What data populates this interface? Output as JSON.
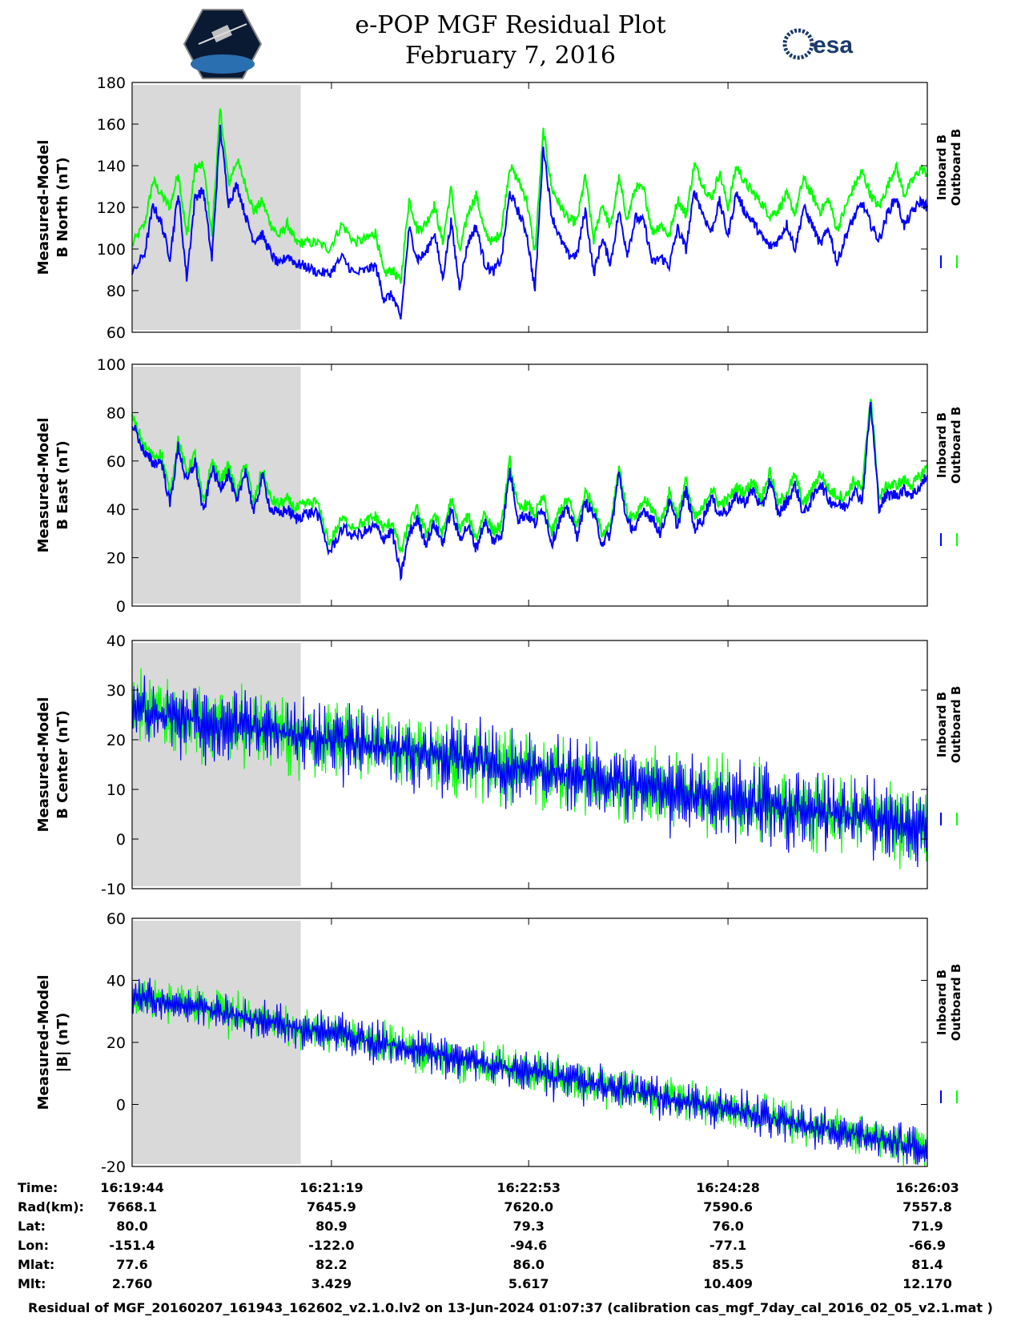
{
  "header": {
    "title": "e-POP MGF Residual Plot",
    "date": "February 7, 2016",
    "right_logo_text": "esa"
  },
  "colors": {
    "inboard": "#0000ff",
    "outboard": "#00ff00",
    "shade": "#d9d9d9"
  },
  "legend": {
    "inboard": "Inboard B",
    "outboard": "Outboard B"
  },
  "chart_data": [
    {
      "type": "line",
      "ylabel_line1": "Measured-Model",
      "ylabel_line2": "B North (nT)",
      "ylim": [
        60,
        180
      ],
      "yticks": [
        60,
        80,
        100,
        120,
        140,
        160,
        180
      ],
      "xlim": [
        0,
        379
      ],
      "shaded_x": [
        0,
        80
      ],
      "series": [
        {
          "name": "Outboard B",
          "x": [
            0,
            6,
            10,
            14,
            18,
            22,
            26,
            30,
            34,
            38,
            42,
            46,
            50,
            54,
            58,
            62,
            66,
            70,
            74,
            78,
            82,
            88,
            94,
            100,
            106,
            112,
            116,
            120,
            124,
            128,
            132,
            136,
            140,
            144,
            148,
            152,
            156,
            160,
            164,
            168,
            172,
            176,
            180,
            184,
            188,
            192,
            196,
            200,
            204,
            208,
            212,
            216,
            220,
            224,
            228,
            232,
            236,
            240,
            244,
            248,
            252,
            256,
            260,
            264,
            268,
            272,
            276,
            280,
            284,
            288,
            292,
            296,
            300,
            304,
            308,
            312,
            316,
            320,
            324,
            328,
            332,
            336,
            340,
            344,
            348,
            352,
            356,
            360,
            364,
            368,
            372,
            376,
            379
          ],
          "values": [
            102,
            112,
            133,
            126,
            120,
            137,
            106,
            139,
            140,
            107,
            167,
            131,
            143,
            131,
            118,
            123,
            112,
            106,
            112,
            103,
            103,
            103,
            100,
            112,
            103,
            105,
            108,
            88,
            90,
            84,
            124,
            109,
            112,
            121,
            103,
            129,
            98,
            117,
            126,
            108,
            103,
            109,
            140,
            133,
            124,
            98,
            157,
            129,
            121,
            114,
            113,
            135,
            104,
            122,
            110,
            134,
            114,
            130,
            128,
            108,
            112,
            106,
            124,
            116,
            141,
            131,
            124,
            137,
            120,
            140,
            132,
            127,
            122,
            116,
            119,
            126,
            117,
            134,
            126,
            118,
            124,
            109,
            120,
            130,
            137,
            126,
            120,
            130,
            140,
            126,
            133,
            139,
            136
          ]
        },
        {
          "name": "Inboard B",
          "x": [
            0,
            6,
            10,
            14,
            18,
            22,
            26,
            30,
            34,
            38,
            42,
            46,
            50,
            54,
            58,
            62,
            66,
            70,
            74,
            78,
            82,
            88,
            94,
            100,
            106,
            112,
            116,
            120,
            124,
            128,
            132,
            136,
            140,
            144,
            148,
            152,
            156,
            160,
            164,
            168,
            172,
            176,
            180,
            184,
            188,
            192,
            196,
            200,
            204,
            208,
            212,
            216,
            220,
            224,
            228,
            232,
            236,
            240,
            244,
            248,
            252,
            256,
            260,
            264,
            268,
            272,
            276,
            280,
            284,
            288,
            292,
            296,
            300,
            304,
            308,
            312,
            316,
            320,
            324,
            328,
            332,
            336,
            340,
            344,
            348,
            352,
            356,
            360,
            364,
            368,
            372,
            376,
            379
          ],
          "values": [
            88,
            98,
            121,
            112,
            96,
            127,
            86,
            125,
            128,
            95,
            158,
            122,
            131,
            116,
            104,
            107,
            98,
            92,
            97,
            93,
            92,
            89,
            88,
            96,
            88,
            90,
            92,
            76,
            78,
            66,
            110,
            95,
            98,
            108,
            86,
            113,
            82,
            103,
            111,
            93,
            89,
            95,
            127,
            118,
            108,
            80,
            150,
            116,
            105,
            97,
            97,
            119,
            88,
            105,
            93,
            118,
            98,
            115,
            113,
            93,
            96,
            92,
            110,
            100,
            128,
            117,
            108,
            123,
            106,
            127,
            118,
            113,
            106,
            101,
            104,
            112,
            100,
            120,
            112,
            102,
            110,
            93,
            106,
            115,
            122,
            112,
            104,
            117,
            125,
            111,
            118,
            123,
            120
          ]
        }
      ]
    },
    {
      "type": "line",
      "ylabel_line1": "Measured-Model",
      "ylabel_line2": "B East (nT)",
      "ylim": [
        0,
        100
      ],
      "yticks": [
        0,
        20,
        40,
        60,
        80,
        100
      ],
      "xlim": [
        0,
        379
      ],
      "shaded_x": [
        0,
        80
      ],
      "series": [
        {
          "name": "Outboard B",
          "x": [
            0,
            6,
            10,
            14,
            18,
            22,
            26,
            30,
            34,
            38,
            42,
            46,
            50,
            54,
            58,
            62,
            66,
            70,
            74,
            78,
            82,
            88,
            94,
            100,
            106,
            112,
            116,
            120,
            124,
            128,
            132,
            136,
            140,
            144,
            148,
            152,
            156,
            160,
            164,
            168,
            172,
            176,
            180,
            184,
            188,
            192,
            196,
            200,
            204,
            208,
            212,
            216,
            220,
            224,
            228,
            232,
            236,
            240,
            244,
            248,
            252,
            256,
            260,
            264,
            268,
            272,
            276,
            280,
            284,
            288,
            292,
            296,
            300,
            304,
            308,
            312,
            316,
            320,
            324,
            328,
            332,
            336,
            340,
            344,
            348,
            352,
            356,
            360,
            364,
            368,
            372,
            376,
            379
          ],
          "values": [
            78,
            66,
            62,
            63,
            46,
            69,
            55,
            63,
            42,
            60,
            52,
            58,
            46,
            60,
            42,
            57,
            44,
            42,
            44,
            40,
            42,
            43,
            26,
            36,
            33,
            35,
            37,
            32,
            35,
            22,
            34,
            40,
            30,
            38,
            30,
            44,
            32,
            37,
            28,
            39,
            31,
            33,
            60,
            40,
            42,
            38,
            45,
            30,
            40,
            44,
            33,
            47,
            42,
            30,
            34,
            58,
            38,
            36,
            44,
            40,
            34,
            47,
            37,
            52,
            36,
            40,
            49,
            42,
            44,
            49,
            47,
            52,
            44,
            56,
            42,
            47,
            54,
            42,
            48,
            55,
            48,
            46,
            45,
            52,
            48,
            88,
            44,
            50,
            50,
            52,
            50,
            54,
            58
          ]
        },
        {
          "name": "Inboard B",
          "x": [
            0,
            6,
            10,
            14,
            18,
            22,
            26,
            30,
            34,
            38,
            42,
            46,
            50,
            54,
            58,
            62,
            66,
            70,
            74,
            78,
            82,
            88,
            94,
            100,
            106,
            112,
            116,
            120,
            124,
            128,
            132,
            136,
            140,
            144,
            148,
            152,
            156,
            160,
            164,
            168,
            172,
            176,
            180,
            184,
            188,
            192,
            196,
            200,
            204,
            208,
            212,
            216,
            220,
            224,
            228,
            232,
            236,
            240,
            244,
            248,
            252,
            256,
            260,
            264,
            268,
            272,
            276,
            280,
            284,
            288,
            292,
            296,
            300,
            304,
            308,
            312,
            316,
            320,
            324,
            328,
            332,
            336,
            340,
            344,
            348,
            352,
            356,
            360,
            364,
            368,
            372,
            376,
            379
          ],
          "values": [
            76,
            63,
            59,
            60,
            42,
            66,
            51,
            60,
            38,
            57,
            49,
            55,
            42,
            57,
            38,
            54,
            40,
            38,
            40,
            36,
            38,
            39,
            22,
            32,
            29,
            31,
            33,
            28,
            31,
            12,
            30,
            36,
            26,
            34,
            26,
            40,
            28,
            33,
            24,
            35,
            27,
            29,
            56,
            36,
            38,
            34,
            41,
            26,
            36,
            40,
            29,
            43,
            38,
            26,
            30,
            55,
            34,
            32,
            40,
            36,
            30,
            43,
            33,
            48,
            32,
            36,
            45,
            38,
            40,
            45,
            43,
            48,
            40,
            52,
            38,
            43,
            50,
            38,
            44,
            51,
            44,
            42,
            41,
            48,
            44,
            84,
            41,
            46,
            46,
            48,
            46,
            50,
            54
          ]
        }
      ]
    },
    {
      "type": "line",
      "ylabel_line1": "Measured-Model",
      "ylabel_line2": "B Center (nT)",
      "ylim": [
        -10,
        40
      ],
      "yticks": [
        -10,
        0,
        10,
        20,
        30,
        40
      ],
      "xlim": [
        0,
        379
      ],
      "shaded_x": [
        0,
        80
      ],
      "trend": {
        "start": 26,
        "end": 2,
        "noise_amplitude": 7
      },
      "series": [
        {
          "name": "Outboard B",
          "x": [
            0,
            379
          ],
          "values": [
            26,
            2
          ]
        },
        {
          "name": "Inboard B",
          "x": [
            0,
            379
          ],
          "values": [
            26,
            2
          ]
        }
      ]
    },
    {
      "type": "line",
      "ylabel_line1": "Measured-Model",
      "ylabel_line2": "|B| (nT)",
      "ylim": [
        -20,
        60
      ],
      "yticks": [
        -20,
        0,
        20,
        40,
        60
      ],
      "xlim": [
        0,
        379
      ],
      "shaded_x": [
        0,
        80
      ],
      "trend": {
        "start": 35,
        "end": -14,
        "noise_amplitude": 6
      },
      "series": [
        {
          "name": "Outboard B",
          "x": [
            0,
            379
          ],
          "values": [
            35,
            -14
          ]
        },
        {
          "name": "Inboard B",
          "x": [
            0,
            379
          ],
          "values": [
            35,
            -14
          ]
        }
      ]
    }
  ],
  "xaxis_ticks": [
    0,
    95,
    189,
    284,
    379
  ],
  "info_table": {
    "rows": [
      {
        "label": "Time:",
        "values": [
          "16:19:44",
          "16:21:19",
          "16:22:53",
          "16:24:28",
          "16:26:03"
        ]
      },
      {
        "label": "Rad(km):",
        "values": [
          "7668.1",
          "7645.9",
          "7620.0",
          "7590.6",
          "7557.8"
        ]
      },
      {
        "label": "Lat:",
        "values": [
          "80.0",
          "80.9",
          "79.3",
          "76.0",
          "71.9"
        ]
      },
      {
        "label": "Lon:",
        "values": [
          "-151.4",
          "-122.0",
          "-94.6",
          "-77.1",
          "-66.9"
        ]
      },
      {
        "label": "Mlat:",
        "values": [
          "77.6",
          "82.2",
          "86.0",
          "85.5",
          "81.4"
        ]
      },
      {
        "label": "Mlt:",
        "values": [
          "2.760",
          "3.429",
          "5.617",
          "10.409",
          "12.170"
        ]
      }
    ]
  },
  "footer": "Residual of MGF_20160207_161943_162602_v2.1.0.lv2 on 13-Jun-2024 01:07:37 (calibration cas_mgf_7day_cal_2016_02_05_v2.1.mat )"
}
